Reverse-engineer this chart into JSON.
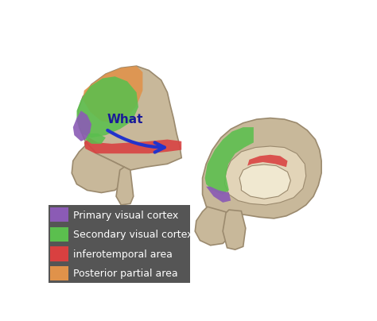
{
  "legend_items": [
    {
      "label": "Primary visual cortex",
      "color": "#8B5BB5"
    },
    {
      "label": "Secondary visual cortex",
      "color": "#5BBF4E"
    },
    {
      "label": "inferotemporal area",
      "color": "#D94040"
    },
    {
      "label": "Posterior partial area",
      "color": "#E0924A"
    }
  ],
  "legend_bg_color": "#555555",
  "legend_text_color": "#ffffff",
  "background_color": "#ffffff",
  "what_text_color": "#1a1a99",
  "arrow_color": "#2233cc",
  "brain_color": "#C8B89A",
  "brain_edge_color": "#9B8A6E",
  "brain2_inner_color": "#E2D4B8",
  "brain2_deep_color": "#F0E8D0"
}
